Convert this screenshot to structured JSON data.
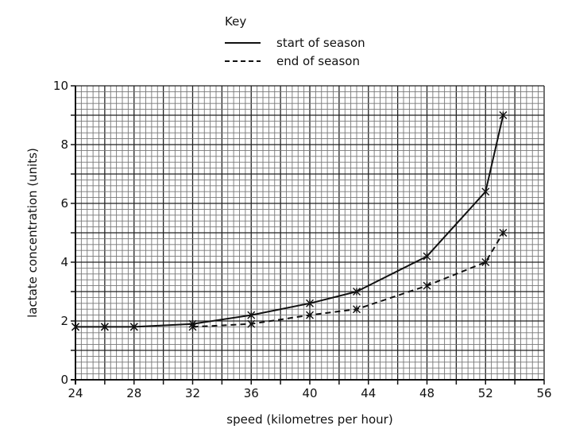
{
  "chart_data": {
    "type": "line",
    "title": "",
    "xlabel": "speed (kilometres per hour)",
    "ylabel": "lactate concentration (units)",
    "xlim": [
      24,
      56
    ],
    "ylim": [
      0,
      10
    ],
    "x_ticks": [
      24,
      28,
      32,
      36,
      40,
      44,
      48,
      52,
      56
    ],
    "y_ticks": [
      0,
      2,
      4,
      6,
      8,
      10
    ],
    "grid": true,
    "legend": {
      "title": "Key",
      "placement": "top-center"
    },
    "series": [
      {
        "name": "start of season",
        "style": "solid",
        "x": [
          24,
          26,
          28,
          32,
          36,
          40,
          43.2,
          48,
          52,
          53.2
        ],
        "y": [
          1.8,
          1.8,
          1.8,
          1.9,
          2.2,
          2.6,
          3.0,
          4.2,
          6.4,
          9.0
        ]
      },
      {
        "name": "end of season",
        "style": "dashed",
        "x": [
          24,
          26,
          28,
          32,
          36,
          40,
          43.2,
          48,
          52,
          53.2
        ],
        "y": [
          1.8,
          1.8,
          1.8,
          1.8,
          1.9,
          2.2,
          2.4,
          3.2,
          4.0,
          5.0
        ]
      }
    ]
  }
}
